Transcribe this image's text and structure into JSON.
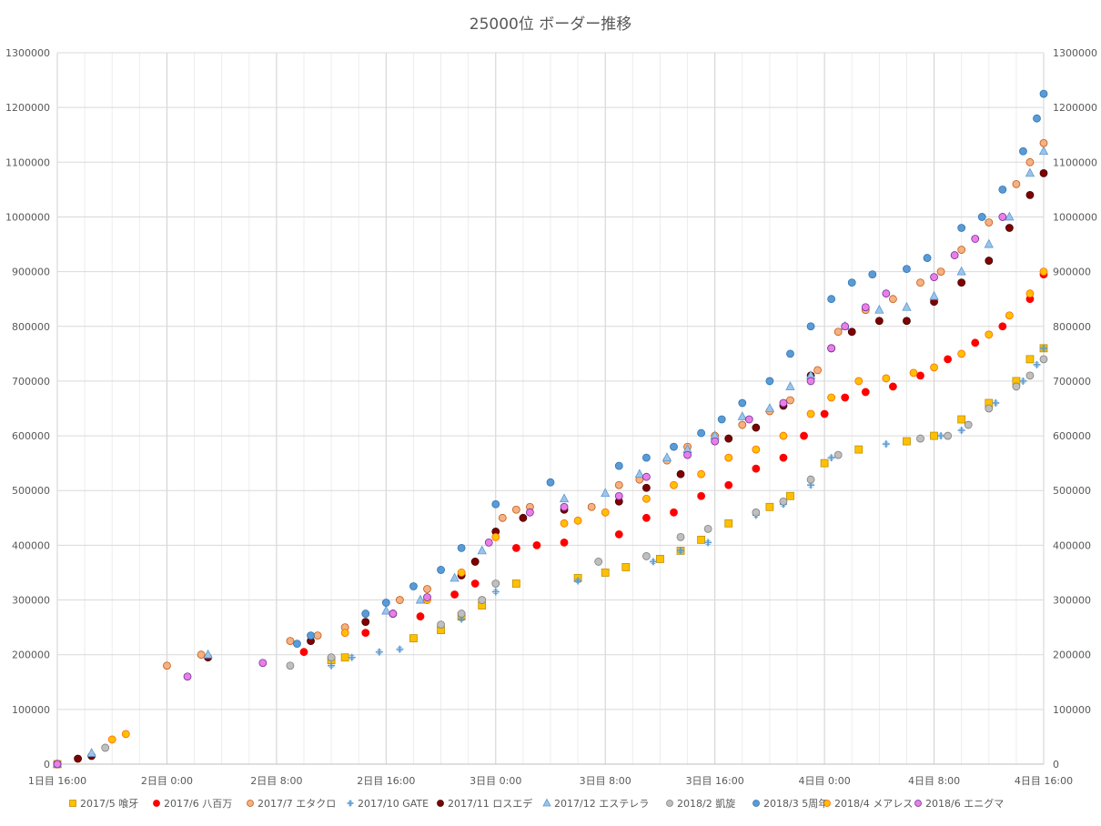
{
  "chart_data": {
    "type": "scatter",
    "title": "25000位 ボーダー推移",
    "x_unit": "hours_from_day1_16:00",
    "x_ticks": [
      {
        "h": 0,
        "label": "1日目 16:00"
      },
      {
        "h": 8,
        "label": "2日目 0:00"
      },
      {
        "h": 16,
        "label": "2日目 8:00"
      },
      {
        "h": 24,
        "label": "2日目 16:00"
      },
      {
        "h": 32,
        "label": "3日目 0:00"
      },
      {
        "h": 40,
        "label": "3日目 8:00"
      },
      {
        "h": 48,
        "label": "3日目 16:00"
      },
      {
        "h": 56,
        "label": "4日目 0:00"
      },
      {
        "h": 64,
        "label": "4日目 8:00"
      },
      {
        "h": 72,
        "label": "4日目 16:00"
      }
    ],
    "xlim": [
      0,
      72
    ],
    "ylim": [
      0,
      1300000
    ],
    "y_ticks": [
      0,
      100000,
      200000,
      300000,
      400000,
      500000,
      600000,
      700000,
      800000,
      900000,
      1000000,
      1100000,
      1200000,
      1300000
    ],
    "grid": true,
    "secondary_y_axis": true,
    "legend_position": "bottom",
    "series": [
      {
        "name": "2017/5 喰牙",
        "marker": "square",
        "color": "#FFC000",
        "stroke": "#BF9000",
        "points": [
          [
            0,
            0
          ],
          [
            20,
            190000
          ],
          [
            21,
            195000
          ],
          [
            26,
            230000
          ],
          [
            28,
            245000
          ],
          [
            29.5,
            270000
          ],
          [
            31,
            290000
          ],
          [
            33.5,
            330000
          ],
          [
            38,
            340000
          ],
          [
            40,
            350000
          ],
          [
            41.5,
            360000
          ],
          [
            44,
            375000
          ],
          [
            45.5,
            390000
          ],
          [
            47,
            410000
          ],
          [
            49,
            440000
          ],
          [
            52,
            470000
          ],
          [
            53.5,
            490000
          ],
          [
            56,
            550000
          ],
          [
            58.5,
            575000
          ],
          [
            62,
            590000
          ],
          [
            64,
            600000
          ],
          [
            66,
            630000
          ],
          [
            68,
            660000
          ],
          [
            70,
            700000
          ],
          [
            71,
            740000
          ],
          [
            72,
            760000
          ]
        ]
      },
      {
        "name": "2017/6 八百万",
        "marker": "circle",
        "color": "#FF0000",
        "stroke": "#FF0000",
        "points": [
          [
            0,
            0
          ],
          [
            18,
            205000
          ],
          [
            22.5,
            240000
          ],
          [
            26.5,
            270000
          ],
          [
            29,
            310000
          ],
          [
            30.5,
            330000
          ],
          [
            33.5,
            395000
          ],
          [
            35,
            400000
          ],
          [
            37,
            405000
          ],
          [
            41,
            420000
          ],
          [
            43,
            450000
          ],
          [
            45,
            460000
          ],
          [
            47,
            490000
          ],
          [
            49,
            510000
          ],
          [
            51,
            540000
          ],
          [
            53,
            560000
          ],
          [
            54.5,
            600000
          ],
          [
            56,
            640000
          ],
          [
            57.5,
            670000
          ],
          [
            59,
            680000
          ],
          [
            61,
            690000
          ],
          [
            63,
            710000
          ],
          [
            65,
            740000
          ],
          [
            67,
            770000
          ],
          [
            69,
            800000
          ],
          [
            71,
            850000
          ],
          [
            72,
            895000
          ]
        ]
      },
      {
        "name": "2017/7 エタクロ",
        "marker": "circle",
        "color": "#F4B183",
        "stroke": "#C55A11",
        "points": [
          [
            8,
            180000
          ],
          [
            10.5,
            200000
          ],
          [
            17,
            225000
          ],
          [
            19,
            235000
          ],
          [
            21,
            250000
          ],
          [
            25,
            300000
          ],
          [
            27,
            320000
          ],
          [
            30.5,
            370000
          ],
          [
            32.5,
            450000
          ],
          [
            33.5,
            465000
          ],
          [
            34.5,
            470000
          ],
          [
            39,
            470000
          ],
          [
            41,
            510000
          ],
          [
            42.5,
            520000
          ],
          [
            44.5,
            555000
          ],
          [
            46,
            580000
          ],
          [
            48,
            600000
          ],
          [
            50,
            620000
          ],
          [
            52,
            645000
          ],
          [
            53.5,
            665000
          ],
          [
            55.5,
            720000
          ],
          [
            57,
            790000
          ],
          [
            59,
            830000
          ],
          [
            61,
            850000
          ],
          [
            63,
            880000
          ],
          [
            64.5,
            900000
          ],
          [
            66,
            940000
          ],
          [
            68,
            990000
          ],
          [
            70,
            1060000
          ],
          [
            71,
            1100000
          ],
          [
            72,
            1135000
          ]
        ]
      },
      {
        "name": "2017/10 GATE",
        "marker": "plus",
        "color": "#5B9BD5",
        "stroke": "#5B9BD5",
        "points": [
          [
            20,
            180000
          ],
          [
            21.5,
            195000
          ],
          [
            23.5,
            205000
          ],
          [
            25,
            210000
          ],
          [
            29.5,
            265000
          ],
          [
            32,
            315000
          ],
          [
            38,
            335000
          ],
          [
            43.5,
            370000
          ],
          [
            45.5,
            390000
          ],
          [
            47.5,
            405000
          ],
          [
            51,
            455000
          ],
          [
            53,
            475000
          ],
          [
            55,
            510000
          ],
          [
            56.5,
            560000
          ],
          [
            60.5,
            585000
          ],
          [
            64.5,
            600000
          ],
          [
            66,
            610000
          ],
          [
            68.5,
            660000
          ],
          [
            70.5,
            700000
          ],
          [
            71.5,
            730000
          ],
          [
            72,
            760000
          ]
        ]
      },
      {
        "name": "2017/11 ロスエデ",
        "marker": "circle",
        "color": "#7F0000",
        "stroke": "#400000",
        "points": [
          [
            0,
            0
          ],
          [
            1.5,
            10000
          ],
          [
            2.5,
            15000
          ],
          [
            11,
            195000
          ],
          [
            18.5,
            225000
          ],
          [
            22.5,
            260000
          ],
          [
            24.5,
            275000
          ],
          [
            29.5,
            345000
          ],
          [
            30.5,
            370000
          ],
          [
            32,
            425000
          ],
          [
            34,
            450000
          ],
          [
            37,
            465000
          ],
          [
            41,
            480000
          ],
          [
            43,
            505000
          ],
          [
            45.5,
            530000
          ],
          [
            49,
            595000
          ],
          [
            51,
            615000
          ],
          [
            53,
            655000
          ],
          [
            55,
            710000
          ],
          [
            56.5,
            760000
          ],
          [
            58,
            790000
          ],
          [
            60,
            810000
          ],
          [
            62,
            810000
          ],
          [
            64,
            845000
          ],
          [
            66,
            880000
          ],
          [
            68,
            920000
          ],
          [
            69.5,
            980000
          ],
          [
            71,
            1040000
          ],
          [
            72,
            1080000
          ]
        ]
      },
      {
        "name": "2017/12 エステレラ",
        "marker": "triangle",
        "color": "#9DC3E6",
        "stroke": "#5B9BD5",
        "points": [
          [
            0,
            0
          ],
          [
            2.5,
            20000
          ],
          [
            11,
            200000
          ],
          [
            24,
            280000
          ],
          [
            26.5,
            300000
          ],
          [
            29,
            340000
          ],
          [
            31,
            390000
          ],
          [
            37,
            485000
          ],
          [
            40,
            495000
          ],
          [
            42.5,
            530000
          ],
          [
            44.5,
            560000
          ],
          [
            46,
            575000
          ],
          [
            48,
            600000
          ],
          [
            50,
            635000
          ],
          [
            52,
            650000
          ],
          [
            53.5,
            690000
          ],
          [
            55,
            710000
          ],
          [
            57.5,
            800000
          ],
          [
            60,
            830000
          ],
          [
            62,
            835000
          ],
          [
            64,
            855000
          ],
          [
            66,
            900000
          ],
          [
            68,
            950000
          ],
          [
            69.5,
            1000000
          ],
          [
            71,
            1080000
          ],
          [
            72,
            1120000
          ]
        ]
      },
      {
        "name": "2018/2 凱旋",
        "marker": "circle",
        "color": "#BFBFBF",
        "stroke": "#7F7F7F",
        "points": [
          [
            0,
            0
          ],
          [
            3.5,
            30000
          ],
          [
            17,
            180000
          ],
          [
            20,
            195000
          ],
          [
            28,
            255000
          ],
          [
            29.5,
            275000
          ],
          [
            31,
            300000
          ],
          [
            32,
            330000
          ],
          [
            39.5,
            370000
          ],
          [
            43,
            380000
          ],
          [
            45.5,
            415000
          ],
          [
            47.5,
            430000
          ],
          [
            51,
            460000
          ],
          [
            53,
            480000
          ],
          [
            55,
            520000
          ],
          [
            57,
            565000
          ],
          [
            63,
            595000
          ],
          [
            65,
            600000
          ],
          [
            66.5,
            620000
          ],
          [
            68,
            650000
          ],
          [
            70,
            690000
          ],
          [
            71,
            710000
          ],
          [
            72,
            740000
          ]
        ]
      },
      {
        "name": "2018/3 5周年",
        "marker": "circle",
        "color": "#5B9BD5",
        "stroke": "#2E75B6",
        "points": [
          [
            0,
            0
          ],
          [
            17.5,
            220000
          ],
          [
            18.5,
            235000
          ],
          [
            22.5,
            275000
          ],
          [
            24,
            295000
          ],
          [
            26,
            325000
          ],
          [
            28,
            355000
          ],
          [
            29.5,
            395000
          ],
          [
            32,
            475000
          ],
          [
            36,
            515000
          ],
          [
            41,
            545000
          ],
          [
            43,
            560000
          ],
          [
            45,
            580000
          ],
          [
            47,
            605000
          ],
          [
            48.5,
            630000
          ],
          [
            50,
            660000
          ],
          [
            52,
            700000
          ],
          [
            53.5,
            750000
          ],
          [
            55,
            800000
          ],
          [
            56.5,
            850000
          ],
          [
            58,
            880000
          ],
          [
            59.5,
            895000
          ],
          [
            62,
            905000
          ],
          [
            63.5,
            925000
          ],
          [
            66,
            980000
          ],
          [
            67.5,
            1000000
          ],
          [
            69,
            1050000
          ],
          [
            70.5,
            1120000
          ],
          [
            71.5,
            1180000
          ],
          [
            72,
            1225000
          ]
        ]
      },
      {
        "name": "2018/4 メアレス",
        "marker": "circle",
        "color": "#FFC000",
        "stroke": "#FF6600",
        "points": [
          [
            0,
            0
          ],
          [
            4,
            45000
          ],
          [
            5,
            55000
          ],
          [
            21,
            240000
          ],
          [
            27,
            300000
          ],
          [
            29.5,
            350000
          ],
          [
            32,
            415000
          ],
          [
            37,
            440000
          ],
          [
            38,
            445000
          ],
          [
            40,
            460000
          ],
          [
            43,
            485000
          ],
          [
            45,
            510000
          ],
          [
            47,
            530000
          ],
          [
            49,
            560000
          ],
          [
            51,
            575000
          ],
          [
            53,
            600000
          ],
          [
            55,
            640000
          ],
          [
            56.5,
            670000
          ],
          [
            58.5,
            700000
          ],
          [
            60.5,
            705000
          ],
          [
            62.5,
            715000
          ],
          [
            64,
            725000
          ],
          [
            66,
            750000
          ],
          [
            68,
            785000
          ],
          [
            69.5,
            820000
          ],
          [
            71,
            860000
          ],
          [
            72,
            900000
          ]
        ]
      },
      {
        "name": "2018/6 エニグマ",
        "marker": "circle",
        "color": "#E97FE5",
        "stroke": "#7030A0",
        "points": [
          [
            0,
            0
          ],
          [
            9.5,
            160000
          ],
          [
            15,
            185000
          ],
          [
            24.5,
            275000
          ],
          [
            27,
            305000
          ],
          [
            31.5,
            405000
          ],
          [
            34.5,
            460000
          ],
          [
            37,
            470000
          ],
          [
            41,
            490000
          ],
          [
            43,
            525000
          ],
          [
            46,
            565000
          ],
          [
            48,
            590000
          ],
          [
            50.5,
            630000
          ],
          [
            53,
            660000
          ],
          [
            55,
            700000
          ],
          [
            56.5,
            760000
          ],
          [
            57.5,
            800000
          ],
          [
            59,
            835000
          ],
          [
            60.5,
            860000
          ],
          [
            64,
            890000
          ],
          [
            65.5,
            930000
          ],
          [
            67,
            960000
          ],
          [
            69,
            1000000
          ]
        ]
      }
    ]
  }
}
